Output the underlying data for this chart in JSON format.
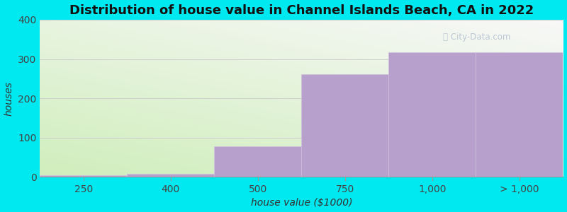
{
  "title": "Distribution of house value in Channel Islands Beach, CA in 2022",
  "categories": [
    "250",
    "400",
    "500",
    "750",
    "1,000",
    "> 1,000"
  ],
  "values": [
    5,
    8,
    78,
    262,
    318,
    318
  ],
  "xlabel": "house value ($1000)",
  "ylabel": "houses",
  "ylim": [
    0,
    400
  ],
  "yticks": [
    0,
    100,
    200,
    300,
    400
  ],
  "background_color": "#00e8f0",
  "bar_color_light": "#cce8b0",
  "bar_color_purple": "#b8a0cc",
  "title_fontsize": 13,
  "label_fontsize": 10,
  "tick_fontsize": 10,
  "watermark": "ⓘ City-Data.com",
  "n_bars": 6
}
